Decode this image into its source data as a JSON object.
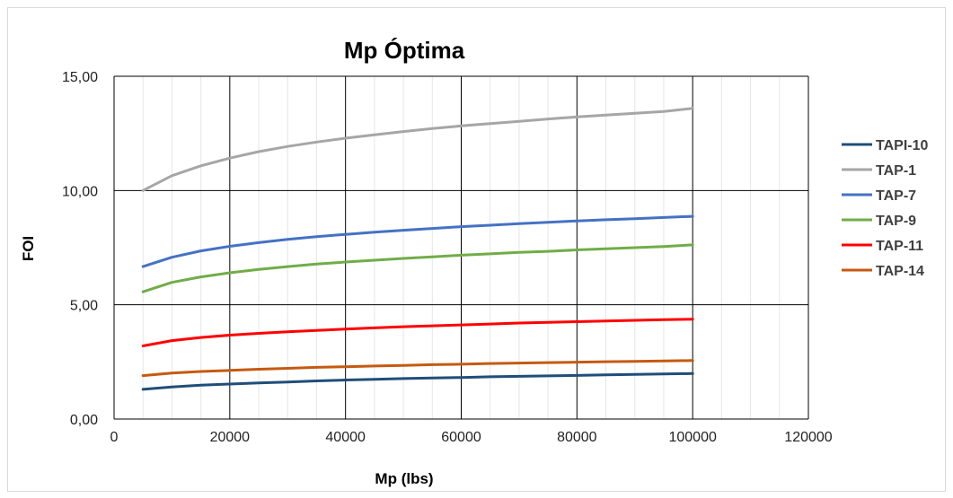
{
  "chart_data": {
    "type": "line",
    "title": "Mp Óptima",
    "xlabel": "Mp (lbs)",
    "ylabel": "FOI",
    "xlim": [
      0,
      120000
    ],
    "ylim": [
      0,
      15
    ],
    "x_ticks": [
      0,
      20000,
      40000,
      60000,
      80000,
      100000,
      120000
    ],
    "x_tick_labels": [
      "0",
      "20000",
      "40000",
      "60000",
      "80000",
      "100000",
      "120000"
    ],
    "y_ticks": [
      0,
      5,
      10,
      15
    ],
    "y_tick_labels": [
      "0,00",
      "5,00",
      "10,00",
      "15,00"
    ],
    "grid": true,
    "legend_position": "right",
    "x": [
      5000,
      10000,
      15000,
      20000,
      25000,
      30000,
      35000,
      40000,
      45000,
      50000,
      55000,
      60000,
      65000,
      70000,
      75000,
      80000,
      85000,
      90000,
      95000,
      100000
    ],
    "series": [
      {
        "name": "TAPI-10",
        "color": "#1f4e79",
        "values": [
          1.3,
          1.4,
          1.48,
          1.53,
          1.58,
          1.62,
          1.67,
          1.71,
          1.74,
          1.77,
          1.8,
          1.82,
          1.85,
          1.87,
          1.89,
          1.91,
          1.93,
          1.95,
          1.97,
          1.99
        ]
      },
      {
        "name": "TAP-1",
        "color": "#a6a6a6",
        "values": [
          10.0,
          10.65,
          11.08,
          11.42,
          11.7,
          11.93,
          12.12,
          12.29,
          12.44,
          12.58,
          12.71,
          12.83,
          12.93,
          13.03,
          13.13,
          13.22,
          13.3,
          13.38,
          13.46,
          13.6
        ]
      },
      {
        "name": "TAP-7",
        "color": "#4472c4",
        "values": [
          6.67,
          7.08,
          7.36,
          7.56,
          7.72,
          7.86,
          7.98,
          8.08,
          8.18,
          8.26,
          8.34,
          8.42,
          8.48,
          8.55,
          8.61,
          8.67,
          8.72,
          8.77,
          8.82,
          8.87
        ]
      },
      {
        "name": "TAP-9",
        "color": "#70ad47",
        "values": [
          5.57,
          5.98,
          6.22,
          6.4,
          6.55,
          6.67,
          6.78,
          6.87,
          6.95,
          7.03,
          7.1,
          7.17,
          7.23,
          7.29,
          7.34,
          7.4,
          7.45,
          7.5,
          7.55,
          7.62
        ]
      },
      {
        "name": "TAP-11",
        "color": "#ff0000",
        "values": [
          3.2,
          3.43,
          3.57,
          3.67,
          3.75,
          3.82,
          3.88,
          3.94,
          3.99,
          4.04,
          4.08,
          4.12,
          4.16,
          4.2,
          4.23,
          4.26,
          4.29,
          4.32,
          4.35,
          4.37
        ]
      },
      {
        "name": "TAP-14",
        "color": "#c55a11",
        "values": [
          1.9,
          2.01,
          2.08,
          2.13,
          2.18,
          2.22,
          2.26,
          2.29,
          2.32,
          2.35,
          2.38,
          2.4,
          2.43,
          2.45,
          2.47,
          2.49,
          2.51,
          2.52,
          2.54,
          2.56
        ]
      }
    ]
  }
}
